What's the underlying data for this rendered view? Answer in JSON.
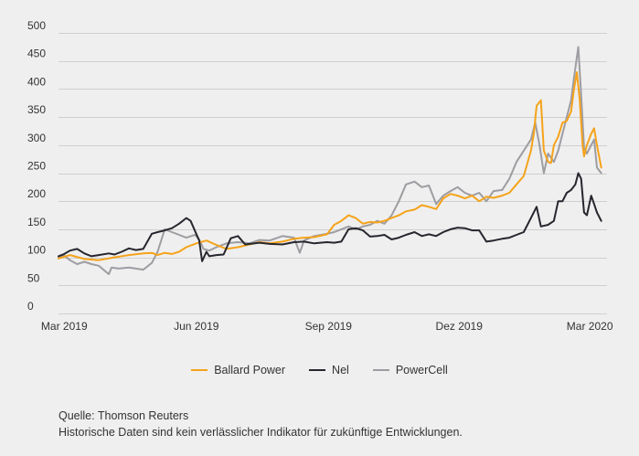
{
  "chart_data": {
    "type": "line",
    "title": "",
    "xlabel": "",
    "ylabel": "",
    "ylim": [
      0,
      500
    ],
    "yticks": [
      0,
      50,
      100,
      150,
      200,
      250,
      300,
      350,
      400,
      450,
      500
    ],
    "xlim": [
      "2019-02-25",
      "2020-03-13"
    ],
    "xticks": [
      {
        "date": "2019-03-01",
        "label": "Mar 2019"
      },
      {
        "date": "2019-06-01",
        "label": "Jun 2019"
      },
      {
        "date": "2019-09-01",
        "label": "Sep 2019"
      },
      {
        "date": "2019-12-01",
        "label": "Dez 2019"
      },
      {
        "date": "2020-03-01",
        "label": "Mar 2020"
      }
    ],
    "grid": "horizontal",
    "legend_position": "bottom",
    "series": [
      {
        "name": "Ballard Power",
        "color": "#f5a31a",
        "points": [
          [
            "2019-02-25",
            98
          ],
          [
            "2019-03-05",
            104
          ],
          [
            "2019-03-15",
            97
          ],
          [
            "2019-03-25",
            95
          ],
          [
            "2019-04-05",
            100
          ],
          [
            "2019-04-15",
            104
          ],
          [
            "2019-04-25",
            107
          ],
          [
            "2019-05-01",
            108
          ],
          [
            "2019-05-05",
            104
          ],
          [
            "2019-05-10",
            108
          ],
          [
            "2019-05-15",
            106
          ],
          [
            "2019-05-20",
            110
          ],
          [
            "2019-05-25",
            118
          ],
          [
            "2019-06-01",
            125
          ],
          [
            "2019-06-08",
            130
          ],
          [
            "2019-06-15",
            122
          ],
          [
            "2019-06-22",
            115
          ],
          [
            "2019-06-30",
            118
          ],
          [
            "2019-07-08",
            123
          ],
          [
            "2019-07-15",
            127
          ],
          [
            "2019-07-22",
            125
          ],
          [
            "2019-07-31",
            128
          ],
          [
            "2019-08-08",
            133
          ],
          [
            "2019-08-15",
            135
          ],
          [
            "2019-08-22",
            136
          ],
          [
            "2019-08-31",
            141
          ],
          [
            "2019-09-05",
            158
          ],
          [
            "2019-09-10",
            165
          ],
          [
            "2019-09-15",
            175
          ],
          [
            "2019-09-20",
            170
          ],
          [
            "2019-09-25",
            160
          ],
          [
            "2019-09-30",
            163
          ],
          [
            "2019-10-05",
            162
          ],
          [
            "2019-10-10",
            165
          ],
          [
            "2019-10-15",
            170
          ],
          [
            "2019-10-20",
            175
          ],
          [
            "2019-10-25",
            182
          ],
          [
            "2019-10-31",
            185
          ],
          [
            "2019-11-05",
            193
          ],
          [
            "2019-11-10",
            190
          ],
          [
            "2019-11-15",
            186
          ],
          [
            "2019-11-20",
            205
          ],
          [
            "2019-11-25",
            213
          ],
          [
            "2019-11-30",
            210
          ],
          [
            "2019-12-05",
            205
          ],
          [
            "2019-12-10",
            210
          ],
          [
            "2019-12-15",
            200
          ],
          [
            "2019-12-20",
            208
          ],
          [
            "2019-12-25",
            206
          ],
          [
            "2019-12-31",
            210
          ],
          [
            "2020-01-05",
            215
          ],
          [
            "2020-01-10",
            230
          ],
          [
            "2020-01-15",
            245
          ],
          [
            "2020-01-20",
            290
          ],
          [
            "2020-01-22",
            320
          ],
          [
            "2020-01-24",
            370
          ],
          [
            "2020-01-27",
            380
          ],
          [
            "2020-01-29",
            290
          ],
          [
            "2020-02-01",
            270
          ],
          [
            "2020-02-03",
            268
          ],
          [
            "2020-02-05",
            300
          ],
          [
            "2020-02-08",
            315
          ],
          [
            "2020-02-11",
            340
          ],
          [
            "2020-02-14",
            343
          ],
          [
            "2020-02-17",
            360
          ],
          [
            "2020-02-19",
            400
          ],
          [
            "2020-02-21",
            430
          ],
          [
            "2020-02-23",
            380
          ],
          [
            "2020-02-25",
            300
          ],
          [
            "2020-02-26",
            280
          ],
          [
            "2020-02-28",
            300
          ],
          [
            "2020-03-02",
            320
          ],
          [
            "2020-03-04",
            330
          ],
          [
            "2020-03-06",
            300
          ],
          [
            "2020-03-09",
            260
          ]
        ]
      },
      {
        "name": "Nel",
        "color": "#26262e",
        "points": [
          [
            "2019-02-25",
            102
          ],
          [
            "2019-03-01",
            106
          ],
          [
            "2019-03-05",
            112
          ],
          [
            "2019-03-10",
            115
          ],
          [
            "2019-03-15",
            107
          ],
          [
            "2019-03-20",
            102
          ],
          [
            "2019-03-25",
            104
          ],
          [
            "2019-04-01",
            107
          ],
          [
            "2019-04-05",
            105
          ],
          [
            "2019-04-10",
            110
          ],
          [
            "2019-04-15",
            116
          ],
          [
            "2019-04-20",
            113
          ],
          [
            "2019-04-25",
            115
          ],
          [
            "2019-05-01",
            142
          ],
          [
            "2019-05-05",
            145
          ],
          [
            "2019-05-10",
            148
          ],
          [
            "2019-05-15",
            152
          ],
          [
            "2019-05-20",
            160
          ],
          [
            "2019-05-25",
            170
          ],
          [
            "2019-05-28",
            165
          ],
          [
            "2019-06-03",
            130
          ],
          [
            "2019-06-05",
            93
          ],
          [
            "2019-06-08",
            110
          ],
          [
            "2019-06-10",
            102
          ],
          [
            "2019-06-15",
            104
          ],
          [
            "2019-06-20",
            105
          ],
          [
            "2019-06-25",
            134
          ],
          [
            "2019-06-30",
            138
          ],
          [
            "2019-07-05",
            123
          ],
          [
            "2019-07-15",
            126
          ],
          [
            "2019-07-22",
            124
          ],
          [
            "2019-07-31",
            123
          ],
          [
            "2019-08-08",
            127
          ],
          [
            "2019-08-15",
            128
          ],
          [
            "2019-08-22",
            125
          ],
          [
            "2019-08-31",
            127
          ],
          [
            "2019-09-05",
            126
          ],
          [
            "2019-09-10",
            128
          ],
          [
            "2019-09-15",
            150
          ],
          [
            "2019-09-20",
            152
          ],
          [
            "2019-09-25",
            148
          ],
          [
            "2019-09-30",
            137
          ],
          [
            "2019-10-05",
            138
          ],
          [
            "2019-10-10",
            140
          ],
          [
            "2019-10-15",
            132
          ],
          [
            "2019-10-20",
            135
          ],
          [
            "2019-10-25",
            140
          ],
          [
            "2019-10-31",
            145
          ],
          [
            "2019-11-05",
            138
          ],
          [
            "2019-11-10",
            141
          ],
          [
            "2019-11-15",
            138
          ],
          [
            "2019-11-20",
            145
          ],
          [
            "2019-11-25",
            150
          ],
          [
            "2019-11-30",
            153
          ],
          [
            "2019-12-05",
            152
          ],
          [
            "2019-12-10",
            148
          ],
          [
            "2019-12-15",
            148
          ],
          [
            "2019-12-20",
            128
          ],
          [
            "2019-12-25",
            130
          ],
          [
            "2019-12-31",
            133
          ],
          [
            "2020-01-05",
            135
          ],
          [
            "2020-01-10",
            140
          ],
          [
            "2020-01-15",
            145
          ],
          [
            "2020-01-20",
            170
          ],
          [
            "2020-01-24",
            190
          ],
          [
            "2020-01-27",
            155
          ],
          [
            "2020-02-01",
            158
          ],
          [
            "2020-02-05",
            165
          ],
          [
            "2020-02-08",
            200
          ],
          [
            "2020-02-11",
            200
          ],
          [
            "2020-02-14",
            215
          ],
          [
            "2020-02-17",
            220
          ],
          [
            "2020-02-20",
            230
          ],
          [
            "2020-02-22",
            250
          ],
          [
            "2020-02-24",
            240
          ],
          [
            "2020-02-26",
            180
          ],
          [
            "2020-02-28",
            175
          ],
          [
            "2020-03-02",
            210
          ],
          [
            "2020-03-04",
            195
          ],
          [
            "2020-03-06",
            180
          ],
          [
            "2020-03-09",
            165
          ]
        ]
      },
      {
        "name": "PowerCell",
        "color": "#9d9da2",
        "points": [
          [
            "2019-02-25",
            100
          ],
          [
            "2019-03-01",
            103
          ],
          [
            "2019-03-05",
            95
          ],
          [
            "2019-03-10",
            88
          ],
          [
            "2019-03-15",
            92
          ],
          [
            "2019-03-20",
            88
          ],
          [
            "2019-03-25",
            85
          ],
          [
            "2019-04-01",
            70
          ],
          [
            "2019-04-03",
            82
          ],
          [
            "2019-04-08",
            80
          ],
          [
            "2019-04-15",
            82
          ],
          [
            "2019-04-25",
            78
          ],
          [
            "2019-05-01",
            90
          ],
          [
            "2019-05-05",
            110
          ],
          [
            "2019-05-10",
            150
          ],
          [
            "2019-05-15",
            145
          ],
          [
            "2019-05-20",
            140
          ],
          [
            "2019-05-25",
            135
          ],
          [
            "2019-05-31",
            140
          ],
          [
            "2019-06-03",
            132
          ],
          [
            "2019-06-06",
            115
          ],
          [
            "2019-06-10",
            112
          ],
          [
            "2019-06-15",
            118
          ],
          [
            "2019-06-22",
            125
          ],
          [
            "2019-06-30",
            127
          ],
          [
            "2019-07-08",
            125
          ],
          [
            "2019-07-15",
            131
          ],
          [
            "2019-07-22",
            130
          ],
          [
            "2019-07-31",
            138
          ],
          [
            "2019-08-08",
            135
          ],
          [
            "2019-08-12",
            108
          ],
          [
            "2019-08-15",
            130
          ],
          [
            "2019-08-22",
            138
          ],
          [
            "2019-08-31",
            142
          ],
          [
            "2019-09-05",
            145
          ],
          [
            "2019-09-10",
            150
          ],
          [
            "2019-09-15",
            155
          ],
          [
            "2019-09-20",
            150
          ],
          [
            "2019-09-25",
            155
          ],
          [
            "2019-09-30",
            158
          ],
          [
            "2019-10-05",
            165
          ],
          [
            "2019-10-10",
            160
          ],
          [
            "2019-10-15",
            175
          ],
          [
            "2019-10-20",
            200
          ],
          [
            "2019-10-25",
            230
          ],
          [
            "2019-10-31",
            235
          ],
          [
            "2019-11-05",
            225
          ],
          [
            "2019-11-10",
            228
          ],
          [
            "2019-11-15",
            195
          ],
          [
            "2019-11-20",
            210
          ],
          [
            "2019-11-25",
            218
          ],
          [
            "2019-11-30",
            225
          ],
          [
            "2019-12-05",
            215
          ],
          [
            "2019-12-10",
            210
          ],
          [
            "2019-12-15",
            215
          ],
          [
            "2019-12-20",
            200
          ],
          [
            "2019-12-25",
            218
          ],
          [
            "2019-12-31",
            220
          ],
          [
            "2020-01-05",
            240
          ],
          [
            "2020-01-10",
            270
          ],
          [
            "2020-01-15",
            290
          ],
          [
            "2020-01-20",
            310
          ],
          [
            "2020-01-23",
            340
          ],
          [
            "2020-01-26",
            300
          ],
          [
            "2020-01-29",
            250
          ],
          [
            "2020-02-01",
            285
          ],
          [
            "2020-02-05",
            270
          ],
          [
            "2020-02-08",
            290
          ],
          [
            "2020-02-11",
            320
          ],
          [
            "2020-02-14",
            350
          ],
          [
            "2020-02-17",
            380
          ],
          [
            "2020-02-19",
            420
          ],
          [
            "2020-02-22",
            475
          ],
          [
            "2020-02-24",
            390
          ],
          [
            "2020-02-26",
            295
          ],
          [
            "2020-02-28",
            285
          ],
          [
            "2020-03-02",
            300
          ],
          [
            "2020-03-04",
            310
          ],
          [
            "2020-03-06",
            260
          ],
          [
            "2020-03-09",
            250
          ]
        ]
      }
    ]
  },
  "footer": {
    "source": "Quelle: Thomson Reuters",
    "disclaimer": "Historische Daten sind kein verlässlicher Indikator für zukünftige Entwicklungen."
  }
}
